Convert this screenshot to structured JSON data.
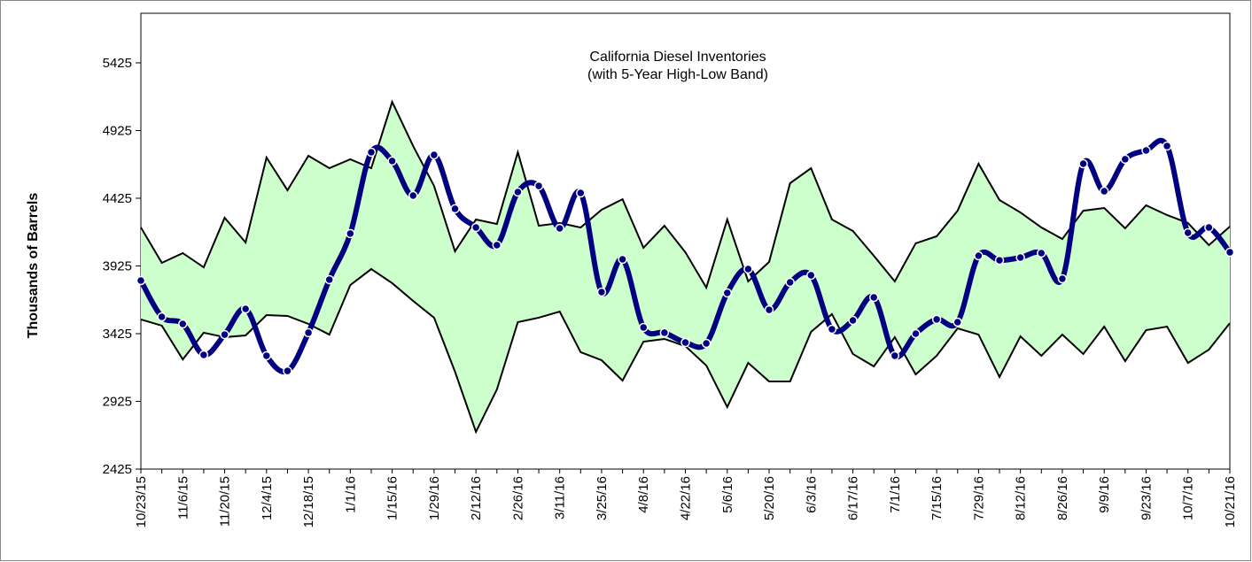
{
  "chart_data": {
    "type": "line",
    "title": "California Diesel Inventories",
    "subtitle": "(with 5-Year High-Low Band)",
    "y_label": "Thousands of Barrels",
    "categories": [
      "10/23/15",
      null,
      "11/6/15",
      null,
      "11/20/15",
      null,
      "12/4/15",
      null,
      "12/18/15",
      null,
      "1/1/16",
      null,
      "1/15/16",
      null,
      "1/29/16",
      null,
      "2/12/16",
      null,
      "2/26/16",
      null,
      "3/11/16",
      null,
      "3/25/16",
      null,
      "4/8/16",
      null,
      "4/22/16",
      null,
      "5/6/16",
      null,
      "5/20/16",
      null,
      "6/3/16",
      null,
      "6/17/16",
      null,
      "7/1/16",
      null,
      "7/15/16",
      null,
      "7/29/16",
      null,
      "8/12/16",
      null,
      "8/26/16",
      null,
      "9/9/16",
      null,
      "9/23/16",
      null,
      "10/7/16",
      null,
      "10/21/16"
    ],
    "band": {
      "fill": "#ccffcc",
      "line_color": "#000000",
      "upper": [
        4209,
        3948,
        4020,
        3915,
        4281,
        4098,
        4726,
        4484,
        4739,
        4647,
        4713,
        4647,
        5137,
        4811,
        4516,
        4033,
        4268,
        4235,
        4765,
        4222,
        4242,
        4209,
        4340,
        4418,
        4059,
        4222,
        4026,
        3765,
        4268,
        3811,
        3955,
        4536,
        4647,
        4268,
        4183,
        4000,
        3811,
        4092,
        4144,
        4333,
        4680,
        4412,
        4320,
        4209,
        4124,
        4333,
        4353,
        4203,
        4373,
        4301,
        4242,
        4079,
        4216
      ],
      "lower": [
        3530,
        3484,
        3235,
        3432,
        3399,
        3412,
        3562,
        3556,
        3497,
        3418,
        3784,
        3902,
        3798,
        3667,
        3543,
        3144,
        2700,
        3013,
        3510,
        3543,
        3588,
        3288,
        3229,
        3079,
        3366,
        3386,
        3333,
        3190,
        2883,
        3209,
        3072,
        3072,
        3438,
        3569,
        3275,
        3183,
        3399,
        3124,
        3262,
        3464,
        3418,
        3105,
        3405,
        3262,
        3418,
        3275,
        3477,
        3222,
        3451,
        3477,
        3209,
        3307,
        3503
      ]
    },
    "series": [
      {
        "color": "#000080",
        "values": [
          3817,
          3549,
          3497,
          3268,
          3418,
          3608,
          3262,
          3150,
          3432,
          3824,
          4164,
          4765,
          4700,
          4445,
          4745,
          4347,
          4209,
          4079,
          4471,
          4516,
          4203,
          4464,
          3732,
          3974,
          3471,
          3432,
          3360,
          3353,
          3726,
          3902,
          3601,
          3804,
          3856,
          3458,
          3523,
          3693,
          3262,
          3425,
          3530,
          3510,
          4000,
          3967,
          3987,
          4020,
          3830,
          4680,
          4477,
          4713,
          4778,
          4811,
          4170,
          4209,
          4026
        ]
      }
    ],
    "ylim": [
      2425,
      5425
    ],
    "yticks": [
      2425,
      2925,
      3425,
      3925,
      4425,
      4925,
      5425
    ],
    "grid": false
  }
}
